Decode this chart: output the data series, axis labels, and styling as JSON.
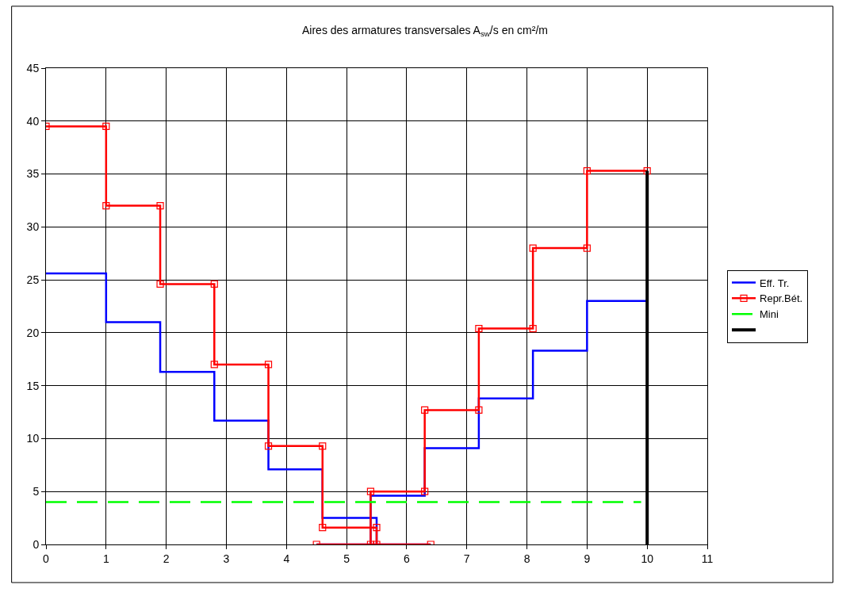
{
  "chart_data": {
    "type": "line",
    "title": "Aires des armatures transversales A$_{sw}$/s en cm²/m",
    "xlim": [
      0,
      11
    ],
    "xticks": [
      0,
      1,
      2,
      3,
      4,
      5,
      6,
      7,
      8,
      9,
      10,
      11
    ],
    "ylim": [
      0,
      45
    ],
    "yticks": [
      0,
      5,
      10,
      15,
      20,
      25,
      30,
      35,
      40,
      45
    ],
    "grid": true,
    "legend": "right",
    "series": [
      {
        "name": "Eff. Tr.",
        "color": "#0000ff",
        "marker": "none",
        "line_style": "solid",
        "x": [
          0,
          1,
          1,
          1.9,
          1.9,
          2.8,
          2.8,
          3.7,
          3.7,
          4.6,
          4.6,
          5.5,
          5.5,
          6.4,
          4.5,
          5.4,
          5.4,
          6.3,
          6.3,
          7.2,
          7.2,
          8.1,
          8.1,
          9,
          9,
          10
        ],
        "values": [
          25.6,
          25.6,
          21,
          21,
          16.3,
          16.3,
          11.7,
          11.7,
          7.1,
          7.1,
          2.5,
          2.5,
          0,
          0,
          0,
          0,
          4.6,
          4.6,
          9.1,
          9.1,
          13.8,
          13.8,
          18.3,
          18.3,
          23,
          23
        ]
      },
      {
        "name": "Repr.Bét.",
        "color": "#ff0000",
        "marker": "square",
        "line_style": "solid",
        "x": [
          0,
          1,
          1,
          1.9,
          1.9,
          2.8,
          2.8,
          3.7,
          3.7,
          4.6,
          4.6,
          5.5,
          5.5,
          6.4,
          4.5,
          5.4,
          5.4,
          6.3,
          6.3,
          7.2,
          7.2,
          8.1,
          8.1,
          9,
          9,
          10
        ],
        "values": [
          39.5,
          39.5,
          32,
          32,
          24.6,
          24.6,
          17,
          17,
          9.3,
          9.3,
          1.6,
          1.6,
          0,
          0,
          0,
          0,
          5,
          5,
          12.7,
          12.7,
          20.4,
          20.4,
          28,
          28,
          35.3,
          35.3
        ]
      },
      {
        "name": "Mini",
        "color": "#00ff00",
        "marker": "none",
        "line_style": "dashed",
        "x": [
          0,
          9.9
        ],
        "values": [
          4,
          4
        ]
      },
      {
        "color": "#000000",
        "marker": "none",
        "line_style": "solid",
        "x": [
          10,
          10
        ],
        "values": [
          0,
          35.3
        ]
      }
    ]
  }
}
